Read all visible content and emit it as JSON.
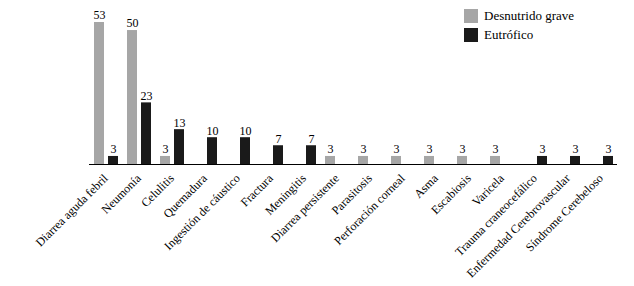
{
  "chart_data": {
    "type": "bar",
    "categories": [
      "Diarrea aguda febril",
      "Neumonía",
      "Celulitis",
      "Quemadura",
      "Ingestión de cáustico",
      "Fractura",
      "Meningitis",
      "Diarrea persistente",
      "Parasitosis",
      "Perforación corneal",
      "Asma",
      "Escabiosis",
      "Varicela",
      "Trauma craneocefálico",
      "Enfermedad Cerebrovascular",
      "Síndrome Cerebeloso"
    ],
    "series": [
      {
        "name": "Desnutrido grave",
        "color": "#a6a6a6",
        "values": [
          53,
          50,
          3,
          null,
          null,
          null,
          null,
          3,
          3,
          3,
          3,
          3,
          3,
          null,
          null,
          null
        ]
      },
      {
        "name": "Eutrófico",
        "color": "#1a1a1a",
        "values": [
          3,
          23,
          13,
          10,
          10,
          7,
          7,
          null,
          null,
          null,
          null,
          null,
          null,
          3,
          3,
          3
        ]
      }
    ],
    "data_labels": true,
    "tick_labels": "x",
    "legend": "top-right"
  }
}
